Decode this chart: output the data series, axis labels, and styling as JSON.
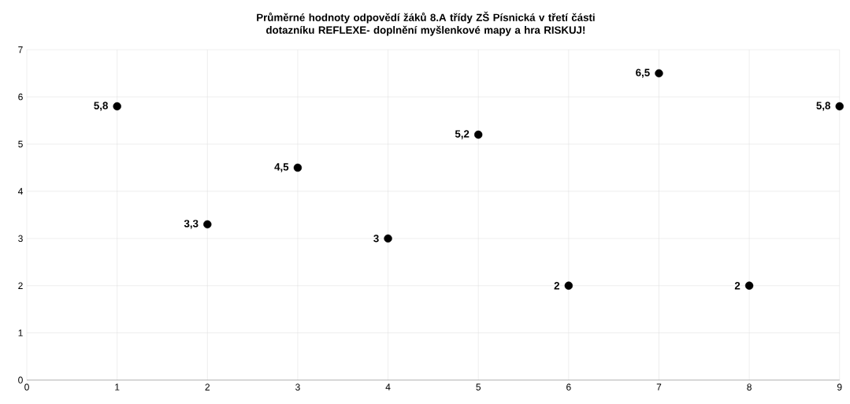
{
  "chart_data": {
    "type": "scatter",
    "title": "Průměrné hodnoty odpovědí žáků 8.A třídy ZŠ Písnická v třetí části dotazníku REFLEXE- doplnění myšlenkové mapy a hra RISKUJ!",
    "x": [
      1,
      2,
      3,
      4,
      5,
      6,
      7,
      8,
      9
    ],
    "values": [
      5.8,
      3.3,
      4.5,
      3,
      5.2,
      2,
      6.5,
      2,
      5.8
    ],
    "value_labels": [
      "5,8",
      "3,3",
      "4,5",
      "3",
      "5,2",
      "2",
      "6,5",
      "2",
      "5,8"
    ],
    "color": "#000000",
    "marker": "circle",
    "grid": true,
    "xlim": [
      0,
      9
    ],
    "xticks": [
      0,
      1,
      2,
      3,
      4,
      5,
      6,
      7,
      8,
      9
    ],
    "ylim": [
      0,
      7
    ],
    "yticks": [
      0,
      1,
      2,
      3,
      4,
      5,
      6,
      7
    ]
  }
}
